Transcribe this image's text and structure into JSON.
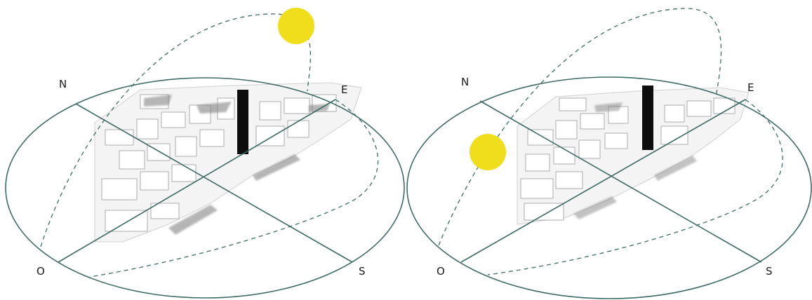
{
  "colors": {
    "orbit": "#3d6b66",
    "sun_path": "#3d6b66",
    "sun": "#f0dd1c",
    "tower": "#0d0d0d",
    "city_light": "#f7f7f7",
    "city_shadow": "#8c8c8c"
  },
  "panels": [
    {
      "id": "sun-high",
      "labels": {
        "north": "N",
        "east": "E",
        "south": "S",
        "west": "O"
      },
      "sun_position": "high-east"
    },
    {
      "id": "sun-low",
      "labels": {
        "north": "N",
        "east": "E",
        "south": "S",
        "west": "O"
      },
      "sun_position": "low-west"
    }
  ]
}
